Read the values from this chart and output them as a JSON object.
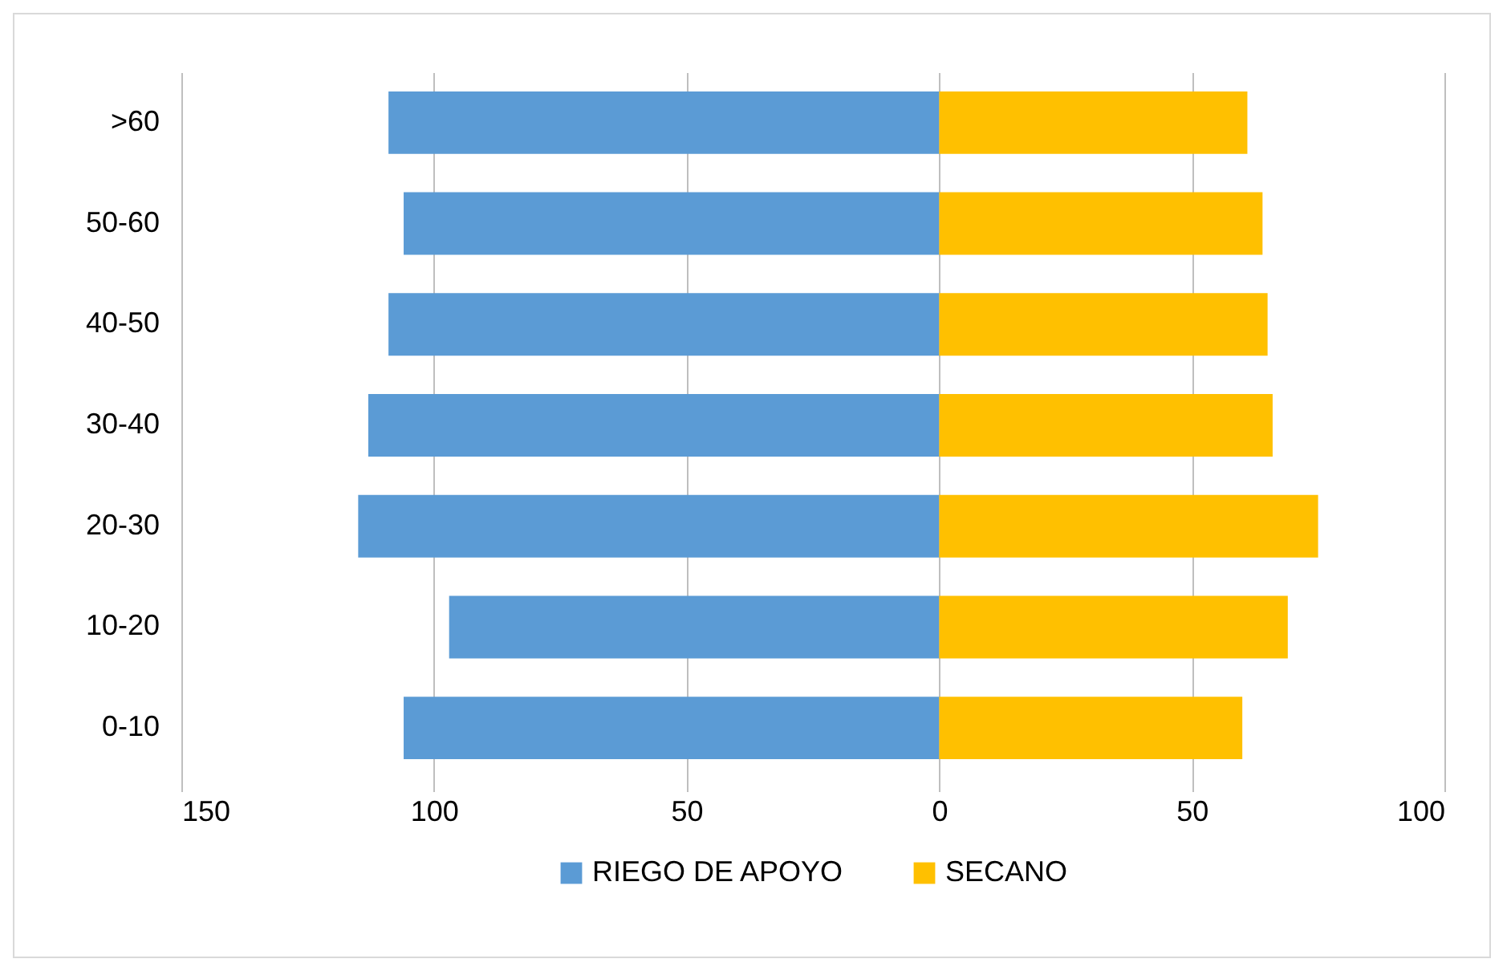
{
  "chart_data": {
    "type": "bar",
    "orientation": "horizontal",
    "stacked": true,
    "categories": [
      ">60",
      "50-60",
      "40-50",
      "30-40",
      "20-30",
      "10-20",
      "0-10"
    ],
    "series": [
      {
        "name": "RIEGO DE APOYO",
        "color": "#5b9bd5",
        "values": [
          -109,
          -106,
          -109,
          -113,
          -115,
          -97,
          -106
        ]
      },
      {
        "name": "SECANO",
        "color": "#ffc000",
        "values": [
          61,
          64,
          65,
          66,
          75,
          69,
          60
        ]
      }
    ],
    "xlim": [
      -150,
      100
    ],
    "xticks": [
      {
        "value": -150,
        "label": "150"
      },
      {
        "value": -100,
        "label": "100"
      },
      {
        "value": -50,
        "label": "50"
      },
      0,
      50,
      100
    ],
    "grid": "x",
    "legend": "bottom"
  }
}
